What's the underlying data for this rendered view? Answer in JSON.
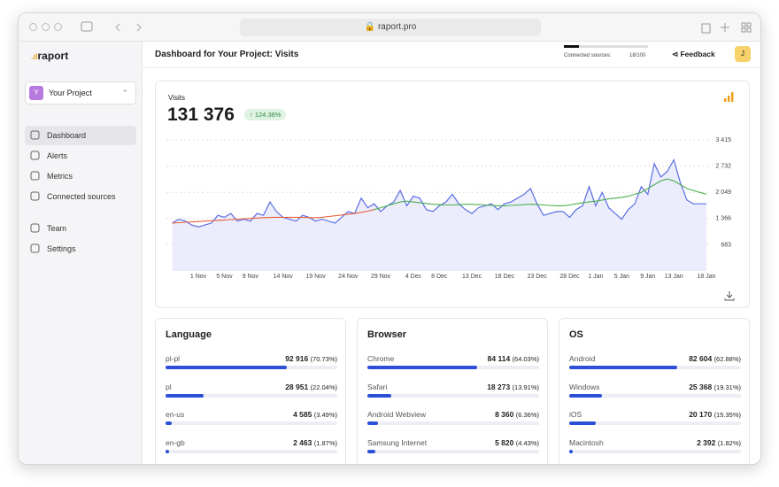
{
  "browser": {
    "url": "raport.pro"
  },
  "sidebar": {
    "brand": "raport",
    "project_avatar": "Y",
    "project": "Your Project",
    "nav": [
      "Dashboard",
      "Alerts",
      "Metrics",
      "Connected sources"
    ],
    "nav2": [
      "Team",
      "Settings"
    ]
  },
  "header": {
    "title": "Dashboard for Your Project: Visits",
    "sources_label": "Connected sources:",
    "sources_count": "18/100",
    "feedback": "Feedback",
    "user": "J"
  },
  "visits": {
    "label": "Visits",
    "total": "131 376",
    "change": "124.36%"
  },
  "chart_data": {
    "type": "line",
    "categories": [
      null,
      null,
      null,
      null,
      "1 Nov",
      null,
      null,
      null,
      "5 Nov",
      null,
      null,
      null,
      "9 Nov",
      null,
      null,
      null,
      null,
      "14 Nov",
      null,
      null,
      null,
      null,
      "19 Nov",
      null,
      null,
      null,
      null,
      "24 Nov",
      null,
      null,
      null,
      null,
      "29 Nov",
      null,
      null,
      null,
      null,
      "4 Dec",
      null,
      null,
      null,
      "8 Dec",
      null,
      null,
      null,
      null,
      "13 Dec",
      null,
      null,
      null,
      null,
      "18 Dec",
      null,
      null,
      null,
      null,
      "23 Dec",
      null,
      null,
      null,
      null,
      "28 Dec",
      null,
      null,
      null,
      "1 Jan",
      null,
      null,
      null,
      "5 Jan",
      null,
      null,
      null,
      "9 Jan",
      null,
      null,
      null,
      "13 Jan",
      null,
      null,
      null,
      null,
      "18 Jan"
    ],
    "series": [
      {
        "color": "#5b6ee1",
        "values": [
          1250,
          1350,
          1300,
          1200,
          1150,
          1200,
          1250,
          1450,
          1400,
          1500,
          1300,
          1350,
          1300,
          1500,
          1450,
          1800,
          1550,
          1400,
          1350,
          1300,
          1450,
          1400,
          1300,
          1350,
          1300,
          1250,
          1400,
          1550,
          1500,
          1900,
          1650,
          1750,
          1550,
          1700,
          1800,
          2100,
          1700,
          1950,
          1900,
          1600,
          1550,
          1700,
          1800,
          2000,
          1750,
          1600,
          1500,
          1650,
          1700,
          1750,
          1600,
          1750,
          1800,
          1900,
          2000,
          2150,
          1750,
          1450,
          1500,
          1550,
          1550,
          1400,
          1600,
          1700,
          2200,
          1700,
          2050,
          1650,
          1500,
          1350,
          1600,
          1750,
          2200,
          2000,
          2800,
          2450,
          2600,
          2900,
          2300,
          1850,
          1750,
          1750,
          1750
        ]
      },
      {
        "color": "#e8603c",
        "values": [
          1250,
          1260,
          1270,
          1280,
          1290,
          1300,
          1310,
          1320,
          1330,
          1340,
          1350,
          1360,
          1370,
          1380,
          1390,
          1395,
          1400,
          1400,
          1400,
          1400,
          1395,
          1390,
          1390,
          1400,
          1420,
          1440,
          1460,
          1480,
          1500,
          1530,
          1560,
          1600,
          null,
          null,
          null,
          null,
          null,
          null,
          null,
          null,
          null,
          null,
          null,
          null,
          null,
          null,
          null,
          null,
          null,
          null,
          null,
          null,
          null,
          null,
          null,
          null,
          null,
          null,
          null,
          null,
          null,
          null,
          null,
          null,
          null,
          null,
          null,
          null,
          null,
          null,
          null,
          null,
          null,
          null,
          null,
          null,
          null,
          null,
          null,
          null,
          null,
          null,
          null
        ]
      },
      {
        "color": "#4caf50",
        "values": [
          null,
          null,
          null,
          null,
          null,
          null,
          null,
          null,
          null,
          null,
          null,
          null,
          null,
          null,
          null,
          null,
          null,
          null,
          null,
          null,
          null,
          null,
          null,
          null,
          null,
          null,
          null,
          null,
          null,
          null,
          null,
          1600,
          1650,
          1700,
          1750,
          1800,
          1820,
          1800,
          1780,
          1760,
          1740,
          1730,
          1720,
          1720,
          1730,
          1740,
          1740,
          1730,
          1720,
          1710,
          1700,
          1700,
          1710,
          1720,
          1730,
          1740,
          1730,
          1720,
          1710,
          1700,
          1700,
          1720,
          1750,
          1780,
          1800,
          1820,
          1850,
          1880,
          1900,
          1920,
          1950,
          2000,
          2050,
          2150,
          2250,
          2350,
          2400,
          2350,
          2250,
          2150,
          2100,
          2050,
          2000
        ]
      }
    ],
    "ylim": [
      0,
      3650
    ],
    "yticks": [
      {
        "value": 683,
        "label": "683"
      },
      {
        "value": 1366,
        "label": "1 366"
      },
      {
        "value": 2049,
        "label": "2 049"
      },
      {
        "value": 2732,
        "label": "2 732"
      },
      {
        "value": 3415,
        "label": "3 415"
      }
    ],
    "grid": true
  },
  "panels": [
    {
      "title": "Language",
      "rows": [
        {
          "name": "pl-pl",
          "value": "92 916",
          "share": 70.73,
          "share_label": "(70.73%)"
        },
        {
          "name": "pl",
          "value": "28 951",
          "share": 22.04,
          "share_label": "(22.04%)"
        },
        {
          "name": "en-us",
          "value": "4 585",
          "share": 3.49,
          "share_label": "(3.49%)"
        },
        {
          "name": "en-gb",
          "value": "2 463",
          "share": 1.87,
          "share_label": "(1.87%)"
        }
      ]
    },
    {
      "title": "Browser",
      "rows": [
        {
          "name": "Chrome",
          "value": "84 114",
          "share": 64.03,
          "share_label": "(64.03%)"
        },
        {
          "name": "Safari",
          "value": "18 273",
          "share": 13.91,
          "share_label": "(13.91%)"
        },
        {
          "name": "Android Webview",
          "value": "8 360",
          "share": 6.36,
          "share_label": "(6.36%)"
        },
        {
          "name": "Samsung Internet",
          "value": "5 820",
          "share": 4.43,
          "share_label": "(4.43%)"
        }
      ]
    },
    {
      "title": "OS",
      "rows": [
        {
          "name": "Android",
          "value": "82 604",
          "share": 62.88,
          "share_label": "(62.88%)"
        },
        {
          "name": "Windows",
          "value": "25 368",
          "share": 19.31,
          "share_label": "(19.31%)"
        },
        {
          "name": "iOS",
          "value": "20 170",
          "share": 15.35,
          "share_label": "(15.35%)"
        },
        {
          "name": "Macintosh",
          "value": "2 392",
          "share": 1.82,
          "share_label": "(1.82%)"
        }
      ]
    }
  ]
}
